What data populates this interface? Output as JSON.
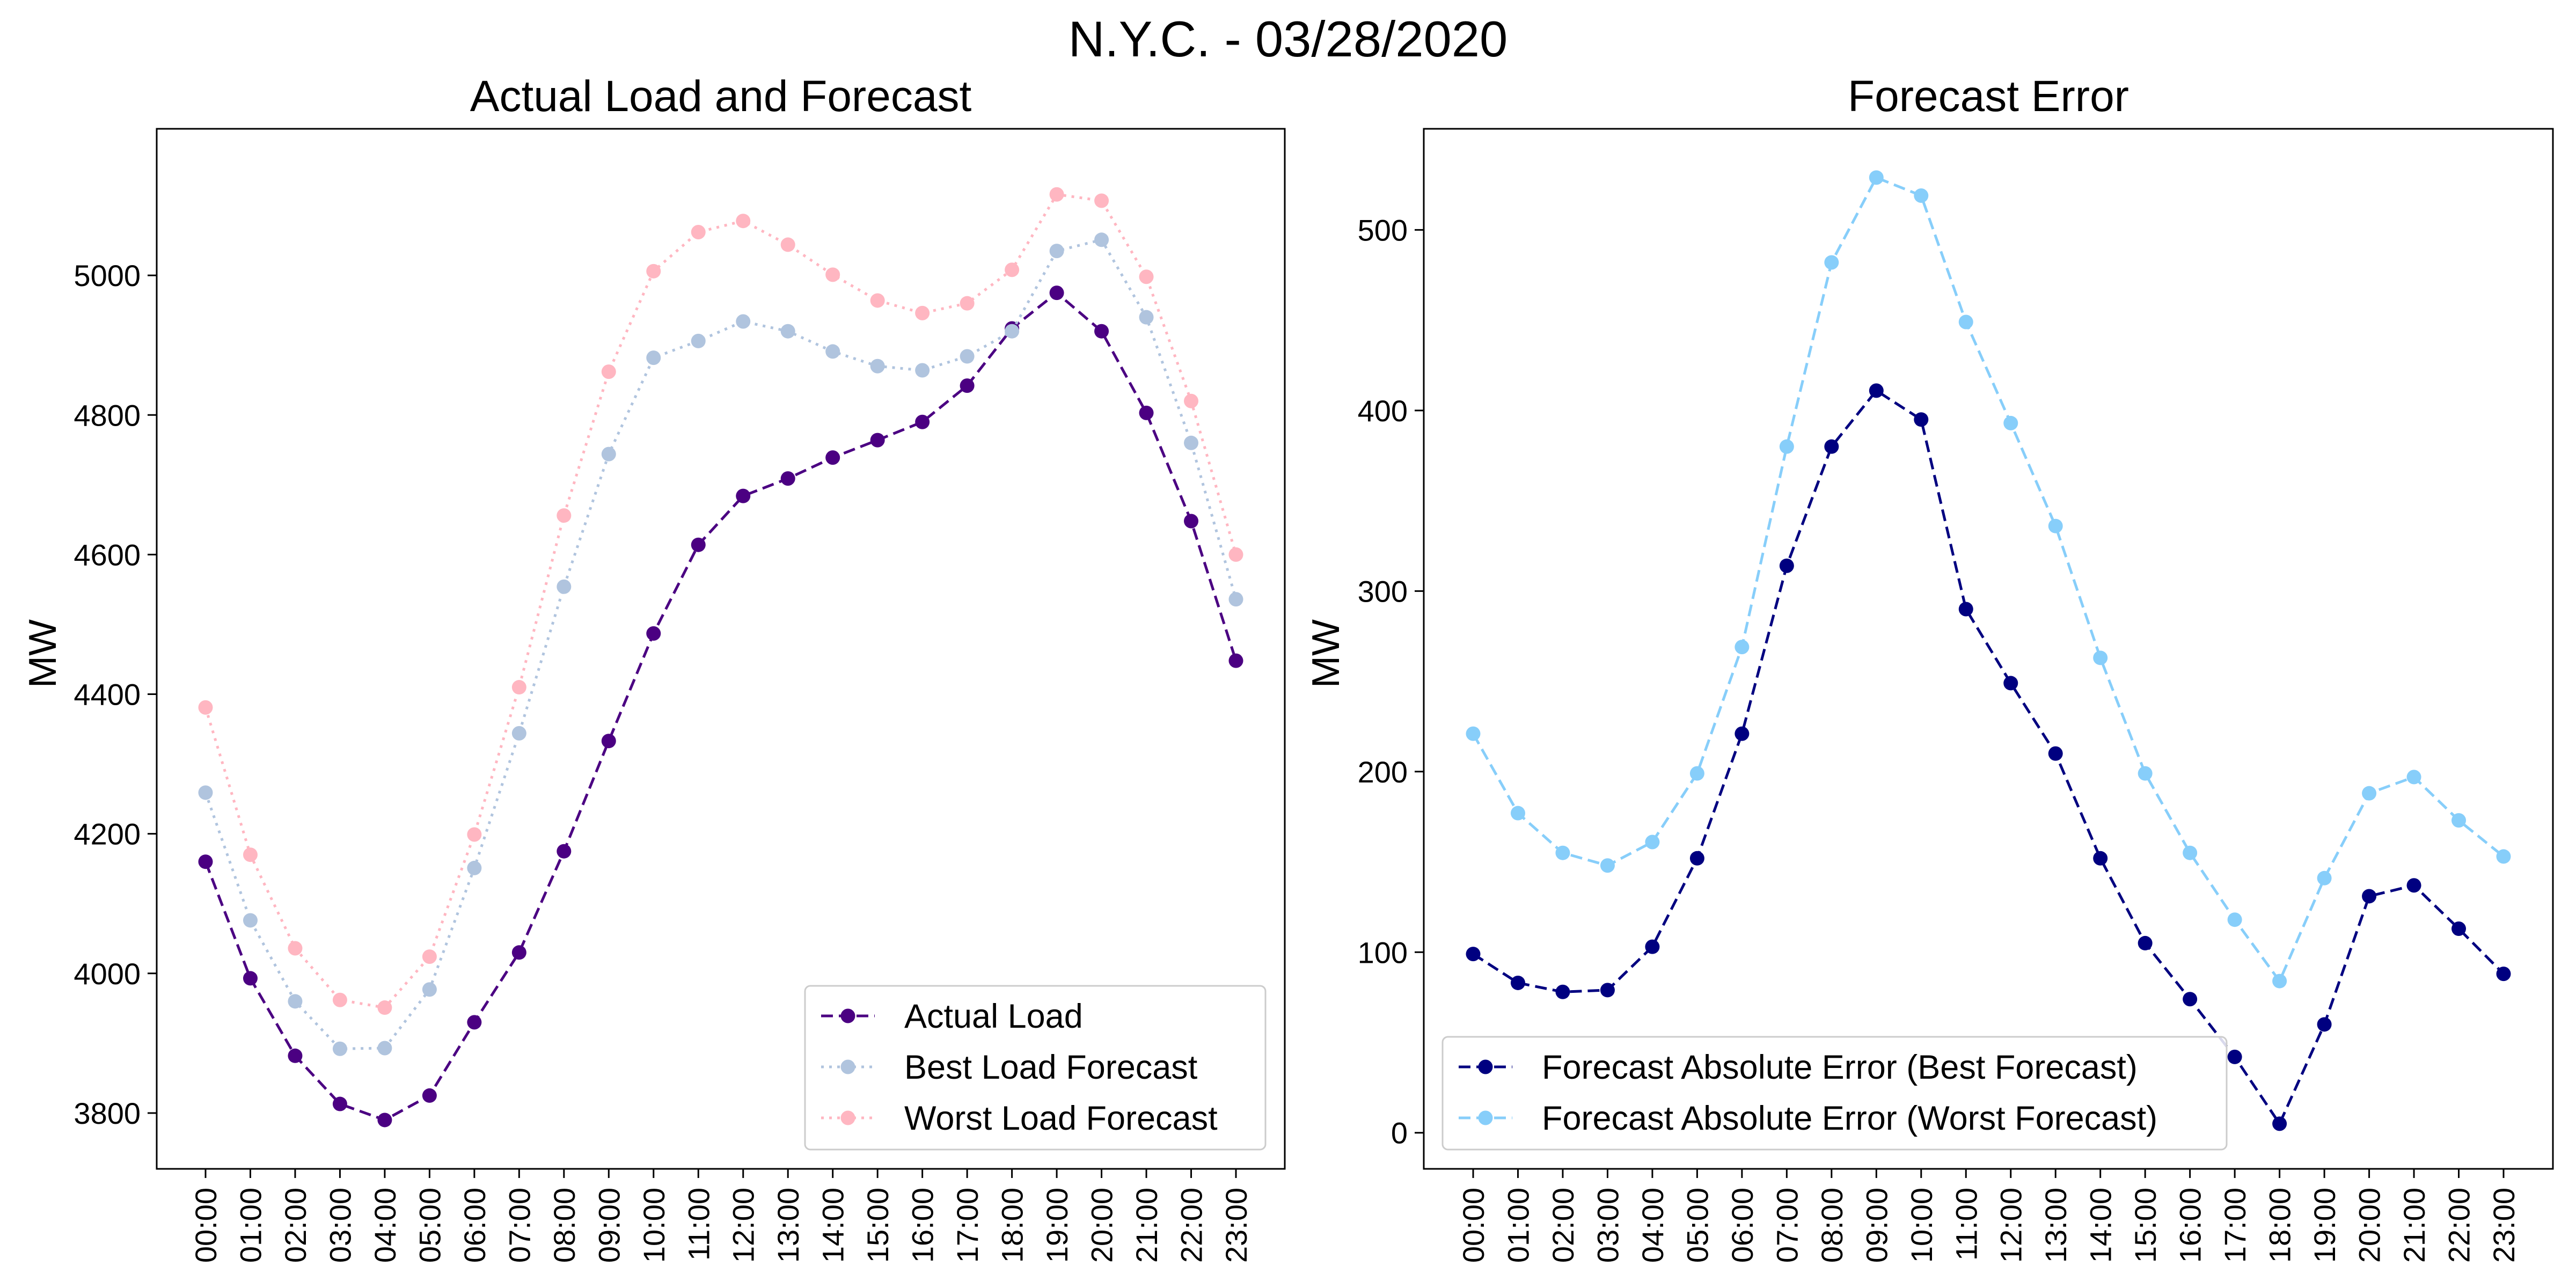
{
  "figure": {
    "suptitle": "N.Y.C. - 03/28/2020"
  },
  "chart_data": [
    {
      "type": "line",
      "title": "Actual Load and Forecast",
      "xlabel": "",
      "ylabel": "MW",
      "ylim": [
        3720,
        5210
      ],
      "yticks": [
        3800,
        4000,
        4200,
        4400,
        4600,
        4800,
        5000
      ],
      "grid": false,
      "legend": "lower right",
      "categories": [
        "00:00",
        "01:00",
        "02:00",
        "03:00",
        "04:00",
        "05:00",
        "06:00",
        "07:00",
        "08:00",
        "09:00",
        "10:00",
        "11:00",
        "12:00",
        "13:00",
        "14:00",
        "15:00",
        "16:00",
        "17:00",
        "18:00",
        "19:00",
        "20:00",
        "21:00",
        "22:00",
        "23:00"
      ],
      "series": [
        {
          "name": "Actual Load",
          "color": "#4b0082",
          "dash": "dashed",
          "values": [
            4160,
            3993,
            3882,
            3813,
            3790,
            3825,
            3930,
            4030,
            4175,
            4333,
            4487,
            4614,
            4684,
            4709,
            4739,
            4764,
            4790,
            4842,
            4924,
            4975,
            4920,
            4803,
            4648,
            4448
          ]
        },
        {
          "name": "Best Load Forecast",
          "color": "#b0c4de",
          "dash": "dotted",
          "values": [
            4259,
            4076,
            3960,
            3892,
            3893,
            3977,
            4151,
            4344,
            4554,
            4744,
            4882,
            4906,
            4934,
            4920,
            4891,
            4870,
            4864,
            4884,
            4920,
            5035,
            5051,
            4940,
            4760,
            4536
          ]
        },
        {
          "name": "Worst Load Forecast",
          "color": "#ffb6c1",
          "dash": "dotted",
          "values": [
            4381,
            4170,
            4036,
            3962,
            3951,
            4024,
            4199,
            4410,
            4656,
            4862,
            5006,
            5062,
            5078,
            5044,
            5001,
            4964,
            4946,
            4960,
            5008,
            5116,
            5107,
            4998,
            4820,
            4600
          ]
        }
      ]
    },
    {
      "type": "line",
      "title": "Forecast Error",
      "xlabel": "",
      "ylabel": "MW",
      "ylim": [
        -20,
        556
      ],
      "yticks": [
        0,
        100,
        200,
        300,
        400,
        500
      ],
      "grid": false,
      "legend": "lower left",
      "categories": [
        "00:00",
        "01:00",
        "02:00",
        "03:00",
        "04:00",
        "05:00",
        "06:00",
        "07:00",
        "08:00",
        "09:00",
        "10:00",
        "11:00",
        "12:00",
        "13:00",
        "14:00",
        "15:00",
        "16:00",
        "17:00",
        "18:00",
        "19:00",
        "20:00",
        "21:00",
        "22:00",
        "23:00"
      ],
      "series": [
        {
          "name": "Forecast Absolute Error (Best Forecast)",
          "color": "#000080",
          "dash": "dashed",
          "values": [
            99,
            83,
            78,
            79,
            103,
            152,
            221,
            314,
            380,
            411,
            395,
            290,
            249,
            210,
            152,
            105,
            74,
            42,
            5,
            60,
            131,
            137,
            113,
            88
          ]
        },
        {
          "name": "Forecast Absolute Error (Worst Forecast)",
          "color": "#87cefa",
          "dash": "dashed",
          "values": [
            221,
            177,
            155,
            148,
            161,
            199,
            269,
            380,
            482,
            529,
            519,
            449,
            393,
            336,
            263,
            199,
            155,
            118,
            84,
            141,
            188,
            197,
            173,
            153
          ]
        }
      ]
    }
  ]
}
